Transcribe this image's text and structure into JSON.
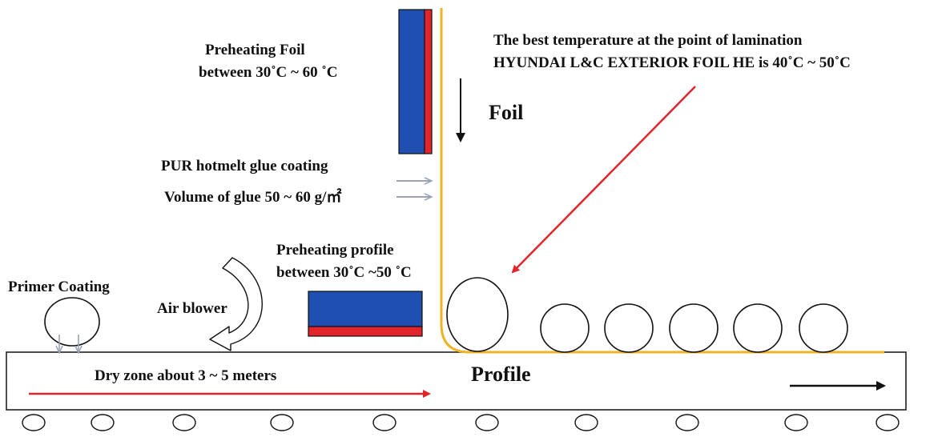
{
  "labels": {
    "preheat_foil_line1": "Preheating Foil",
    "preheat_foil_line2": "between 30˚C ~ 60 ˚C",
    "best_temp_line1": "The best temperature at the point of lamination",
    "best_temp_line2": "HYUNDAI L&C EXTERIOR FOIL HE is 40˚C ~ 50˚C",
    "foil": "Foil",
    "pur_glue": "PUR hotmelt glue coating",
    "glue_volume": "Volume of glue 50 ~ 60 g/㎡",
    "preheat_profile_line1": "Preheating  profile",
    "preheat_profile_line2": "between 30˚C ~50 ˚C",
    "primer": "Primer Coating",
    "air_blower": "Air blower",
    "dry_zone": "Dry zone about 3 ~ 5 meters",
    "profile": "Profile"
  },
  "colors": {
    "foil_blue": "#1f4fb0",
    "foil_red": "#e3242b",
    "foil_line": "#f0b323",
    "red_arrow": "#e3242b",
    "gray_arrow": "#9aa4b8",
    "black": "#111111"
  },
  "icons": {
    "air_blower": "curved-arrow-icon",
    "primer_drops": "down-arrow-icon"
  }
}
